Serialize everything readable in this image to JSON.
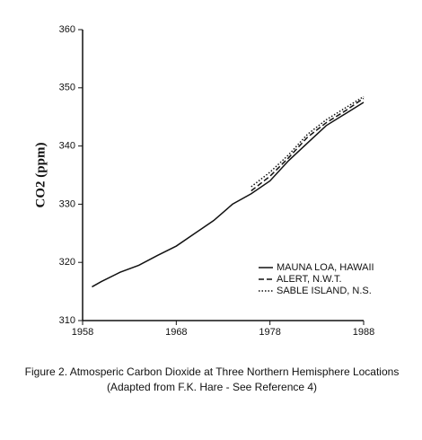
{
  "chart_data": {
    "type": "line",
    "title": "Figure 2. Atmosperic Carbon Dioxide at Three Northern Hemisphere Locations",
    "subtitle": "(Adapted from F.K. Hare - See Reference 4)",
    "y_label": "CO2 (ppm)",
    "xlim": [
      1958,
      1988
    ],
    "xticks": [
      1958,
      1968,
      1978,
      1988
    ],
    "ylim": [
      310,
      360
    ],
    "yticks": [
      310,
      320,
      330,
      340,
      350,
      360
    ],
    "legend": "lower-right",
    "series": [
      {
        "name": "MAUNA LOA, HAWAII",
        "color": "#111111",
        "style": "solid",
        "x": [
          1959,
          1960,
          1962,
          1964,
          1966,
          1968,
          1970,
          1972,
          1974,
          1976,
          1978,
          1980,
          1982,
          1984,
          1986,
          1988
        ],
        "values": [
          315.8,
          316.7,
          318.3,
          319.5,
          321.2,
          322.8,
          325,
          327.2,
          330,
          331.8,
          334,
          337.5,
          340.5,
          343.5,
          345.5,
          347.5
        ]
      },
      {
        "name": "ALERT, N.W.T.",
        "color": "#111111",
        "style": "dashed",
        "x": [
          1976,
          1978,
          1980,
          1982,
          1984,
          1986,
          1988
        ],
        "values": [
          332.3,
          334.8,
          338,
          341.5,
          344,
          346,
          348.2
        ]
      },
      {
        "name": "SABLE ISLAND, N.S.",
        "color": "#111111",
        "style": "dotted",
        "x": [
          1976,
          1978,
          1980,
          1982,
          1984,
          1986,
          1988
        ],
        "values": [
          333,
          335.5,
          338.5,
          342,
          344.5,
          346.5,
          348.5
        ]
      }
    ]
  }
}
